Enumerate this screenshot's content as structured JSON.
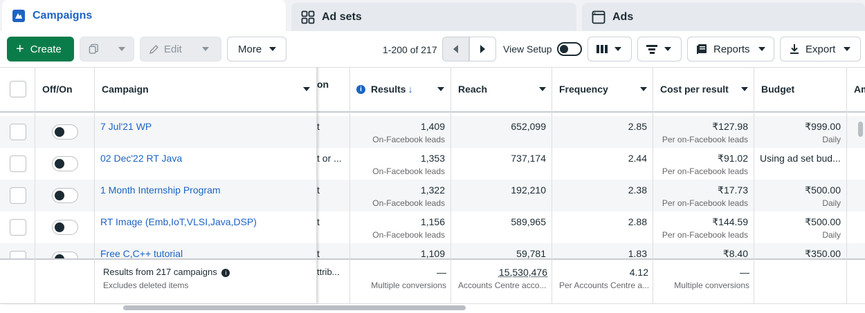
{
  "tabs": {
    "campaigns": "Campaigns",
    "adsets": "Ad sets",
    "ads": "Ads"
  },
  "toolbar": {
    "create": "Create",
    "edit": "Edit",
    "more": "More",
    "pager": "1-200 of 217",
    "view_setup": "View Setup",
    "reports": "Reports",
    "export": "Export"
  },
  "columns": {
    "offon": "Off/On",
    "campaign": "Campaign",
    "hidden_fragment": "on",
    "results": "Results",
    "reach": "Reach",
    "frequency": "Frequency",
    "cost_per_result": "Cost per result",
    "budget": "Budget",
    "next_fragment": "Am"
  },
  "rows": [
    {
      "name": "7 Jul'21 WP",
      "frag": "t",
      "results": "1,409",
      "results_sub": "On-Facebook leads",
      "reach": "652,099",
      "frequency": "2.85",
      "cost": "₹127.98",
      "cost_sub": "Per on-Facebook leads",
      "budget": "₹999.00",
      "budget_sub": "Daily"
    },
    {
      "name": "02 Dec'22 RT Java",
      "frag": "t or ...",
      "results": "1,353",
      "results_sub": "On-Facebook leads",
      "reach": "737,174",
      "frequency": "2.44",
      "cost": "₹91.02",
      "cost_sub": "Per on-Facebook leads",
      "budget": "Using ad set bud...",
      "budget_sub": ""
    },
    {
      "name": "1 Month Internship Program",
      "frag": "t",
      "results": "1,322",
      "results_sub": "On-Facebook leads",
      "reach": "192,210",
      "frequency": "2.38",
      "cost": "₹17.73",
      "cost_sub": "Per on-Facebook leads",
      "budget": "₹500.00",
      "budget_sub": "Daily"
    },
    {
      "name": "RT Image (Emb,IoT,VLSI,Java,DSP)",
      "frag": "t",
      "results": "1,156",
      "results_sub": "On-Facebook leads",
      "reach": "589,965",
      "frequency": "2.88",
      "cost": "₹144.59",
      "cost_sub": "Per on-Facebook leads",
      "budget": "₹500.00",
      "budget_sub": "Daily"
    },
    {
      "name": "Free C,C++ tutorial",
      "frag": "t",
      "results": "1,109",
      "results_sub": "",
      "reach": "59,781",
      "frequency": "1.83",
      "cost": "₹8.40",
      "cost_sub": "",
      "budget": "₹350.00",
      "budget_sub": ""
    }
  ],
  "summary": {
    "title": "Results from 217 campaigns",
    "sub": "Excludes deleted items",
    "frag": "ttrib...",
    "results": "—",
    "results_sub": "Multiple conversions",
    "reach": "15,530,476",
    "reach_sub": "Accounts Centre acco...",
    "frequency": "4.12",
    "frequency_sub": "Per Accounts Centre a...",
    "cost": "—",
    "cost_sub": "Multiple conversions"
  }
}
